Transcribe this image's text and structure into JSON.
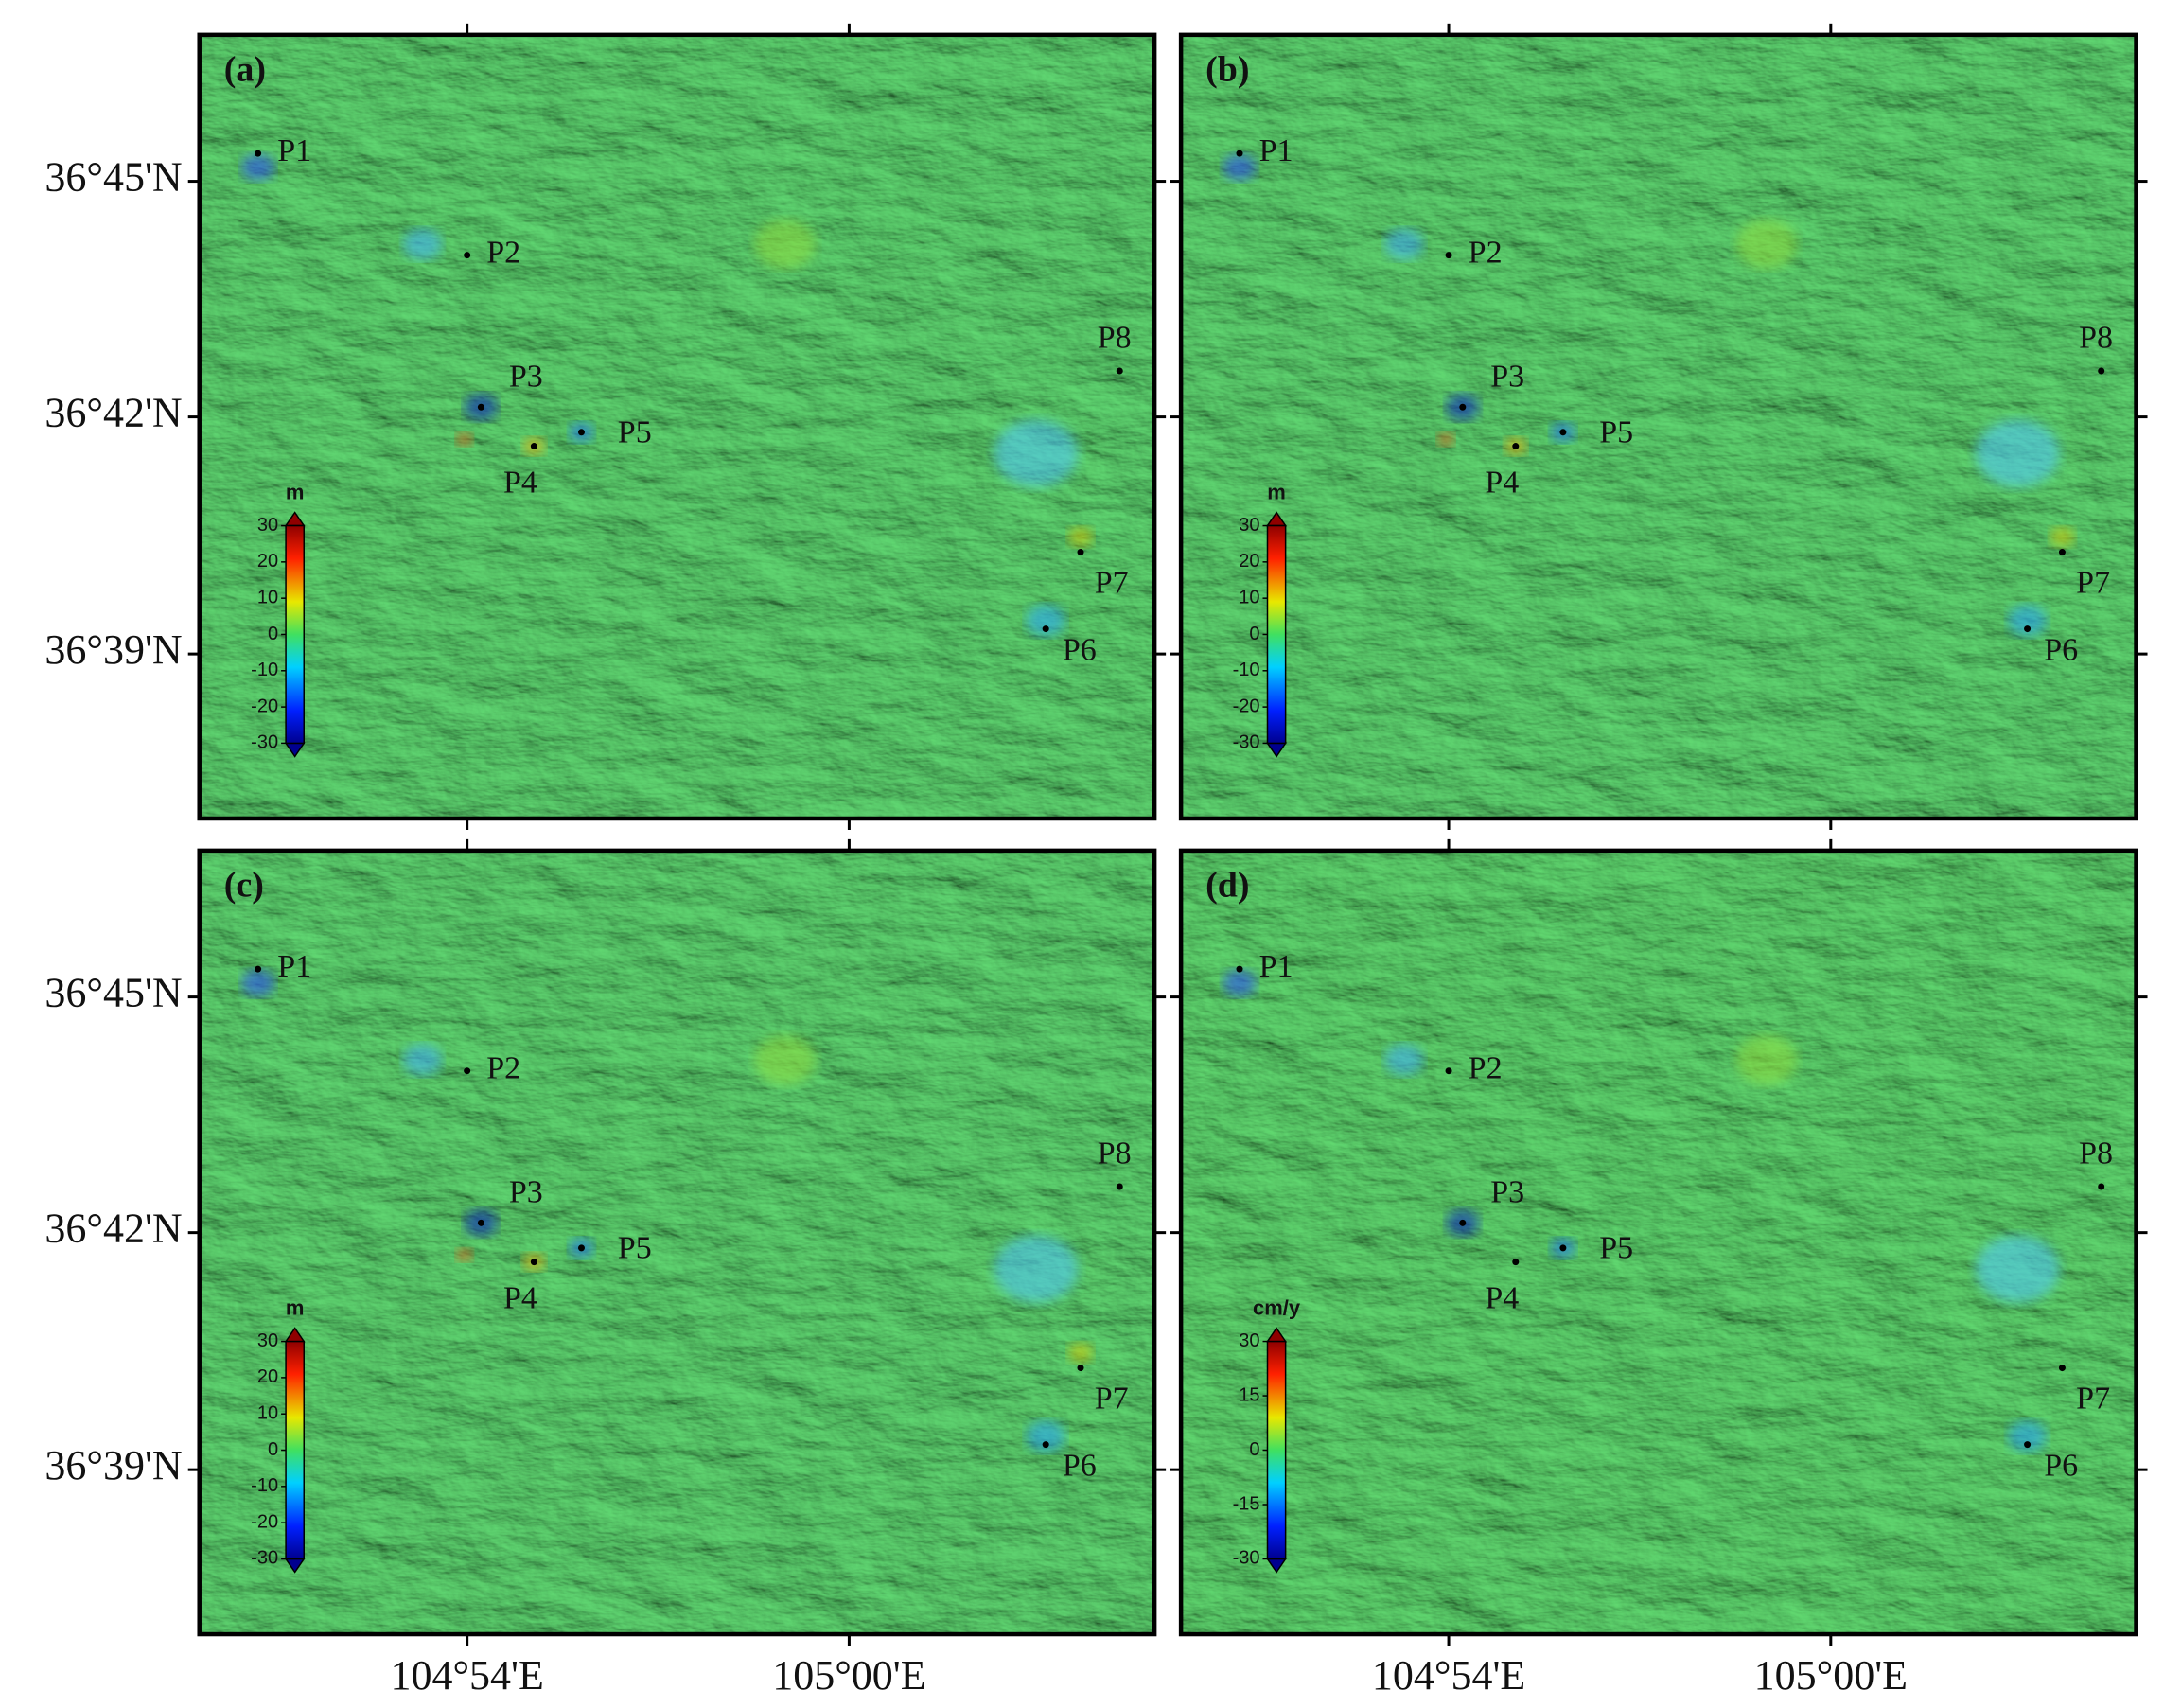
{
  "panels": [
    {
      "label": "(a)",
      "colorbar": {
        "unit": "m",
        "lim": [
          -30,
          30
        ],
        "ticks": [
          30,
          20,
          10,
          0,
          -10,
          -20,
          -30
        ]
      },
      "points": [
        "P1",
        "P2",
        "P3",
        "P4",
        "P5",
        "P6",
        "P7",
        "P8"
      ]
    },
    {
      "label": "(b)",
      "colorbar": {
        "unit": "m",
        "lim": [
          -30,
          30
        ],
        "ticks": [
          30,
          20,
          10,
          0,
          -10,
          -20,
          -30
        ]
      },
      "points": [
        "P1",
        "P2",
        "P3",
        "P4",
        "P5",
        "P6",
        "P7",
        "P8"
      ]
    },
    {
      "label": "(c)",
      "colorbar": {
        "unit": "m",
        "lim": [
          -30,
          30
        ],
        "ticks": [
          30,
          20,
          10,
          0,
          -10,
          -20,
          -30
        ]
      },
      "points": [
        "P1",
        "P2",
        "P3",
        "P4",
        "P5",
        "P6",
        "P7",
        "P8"
      ]
    },
    {
      "label": "(d)",
      "colorbar": {
        "unit": "cm/y",
        "lim": [
          -30,
          30
        ],
        "ticks": [
          30,
          15,
          0,
          -15,
          -30
        ]
      },
      "points": [
        "P1",
        "P2",
        "P3",
        "P4",
        "P5",
        "P6",
        "P7",
        "P8"
      ]
    }
  ],
  "y_axis": {
    "labels": [
      "36°45'N",
      "36°42'N",
      "36°39'N"
    ]
  },
  "x_axis": {
    "labels": [
      "104°54'E",
      "105°00'E"
    ]
  }
}
